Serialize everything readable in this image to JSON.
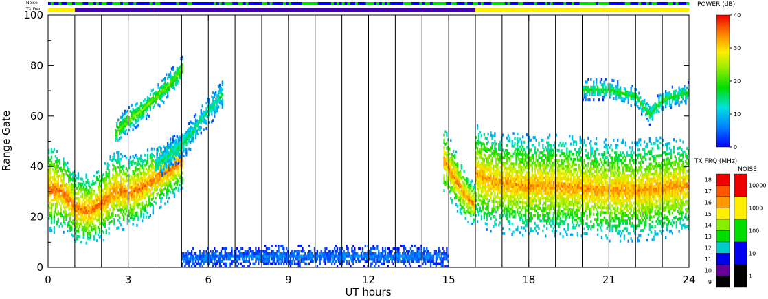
{
  "chart_data": {
    "type": "heatmap",
    "title": "",
    "xlabel": "UT hours",
    "ylabel": "Range Gate",
    "xlim": [
      0,
      24
    ],
    "ylim": [
      0,
      100
    ],
    "x_ticks": [
      "0",
      "3",
      "6",
      "9",
      "12",
      "15",
      "18",
      "21",
      "24"
    ],
    "x_tick_values": [
      0,
      3,
      6,
      9,
      12,
      15,
      18,
      21,
      24
    ],
    "y_ticks": [
      "0",
      "20",
      "40",
      "60",
      "80",
      "100"
    ],
    "y_tick_values": [
      0,
      20,
      40,
      60,
      80,
      100
    ],
    "scan_boundaries_ut": [
      1,
      2,
      3,
      4,
      5,
      6,
      7,
      8,
      9,
      10,
      11,
      12,
      13,
      14,
      15,
      16,
      17,
      18,
      19,
      20,
      21,
      22,
      23
    ],
    "grid": false,
    "echo_bands": [
      {
        "name": "Main echo band (early)",
        "ut": [
          0,
          0.5,
          1,
          1.5,
          2,
          2.5,
          3,
          3.5,
          4,
          4.5,
          5
        ],
        "center_gate": [
          31,
          30,
          23,
          22,
          25,
          30,
          29,
          31,
          35,
          38,
          42
        ],
        "thickness": [
          18,
          16,
          14,
          14,
          15,
          16,
          14,
          14,
          13,
          12,
          12
        ],
        "core_power_db": 35
      },
      {
        "name": "Main echo band (late)",
        "ut": [
          16,
          16.5,
          17,
          18,
          19,
          20,
          21,
          22,
          23,
          24
        ],
        "center_gate": [
          37,
          34,
          33,
          32,
          32,
          31,
          30,
          30,
          31,
          32
        ],
        "thickness": [
          20,
          20,
          20,
          20,
          20,
          20,
          20,
          20,
          20,
          18
        ],
        "core_power_db": 33
      },
      {
        "name": "Descending echo before 16 UT",
        "ut": [
          14.8,
          15.2,
          15.6,
          16
        ],
        "center_gate": [
          42,
          35,
          28,
          24
        ],
        "thickness": [
          14,
          12,
          10,
          8
        ],
        "core_power_db": 34
      },
      {
        "name": "Rising echo streak",
        "ut": [
          4,
          5,
          5.5,
          6,
          6.5
        ],
        "center_gate": [
          40,
          48,
          55,
          62,
          68
        ],
        "thickness": [
          6,
          6,
          6,
          6,
          6
        ],
        "core_power_db": 15
      },
      {
        "name": "Upper streak (3-5 UT)",
        "ut": [
          2.5,
          3,
          3.5,
          4,
          4.5,
          5
        ],
        "center_gate": [
          53,
          58,
          62,
          67,
          72,
          78
        ],
        "thickness": [
          5,
          5,
          5,
          5,
          5,
          5
        ],
        "core_power_db": 22
      },
      {
        "name": "Late upper echoes",
        "ut": [
          20,
          21,
          22,
          22.5,
          23,
          24
        ],
        "center_gate": [
          70,
          70,
          67,
          60,
          66,
          69
        ],
        "thickness": [
          4,
          4,
          4,
          4,
          4,
          4
        ],
        "core_power_db": 18
      },
      {
        "name": "Near-range ground scatter",
        "ut": [
          5,
          8,
          11,
          14,
          15
        ],
        "center_gate": [
          3,
          4,
          4,
          4,
          3
        ],
        "thickness": [
          4,
          4,
          4,
          4,
          4
        ],
        "core_power_db": 6
      }
    ],
    "colorbars": {
      "power": {
        "label": "POWER (dB)",
        "range": [
          0,
          40
        ],
        "ticks": [
          "0",
          "10",
          "20",
          "30",
          "40"
        ],
        "tick_values": [
          0,
          10,
          20,
          30,
          40
        ]
      },
      "tx_freq": {
        "label": "TX FRQ (MHz)",
        "bands": [
          {
            "label": "18",
            "color": "#ee0000"
          },
          {
            "label": "17",
            "color": "#ff5500"
          },
          {
            "label": "16",
            "color": "#ff9900"
          },
          {
            "label": "15",
            "color": "#ffee00"
          },
          {
            "label": "14",
            "color": "#88ee00"
          },
          {
            "label": "13",
            "color": "#00dd00"
          },
          {
            "label": "12",
            "color": "#00cccc"
          },
          {
            "label": "11",
            "color": "#0000ee"
          },
          {
            "label": "10",
            "color": "#660099"
          },
          {
            "label": "9",
            "color": "#000000"
          }
        ]
      },
      "noise": {
        "label": "NOISE",
        "bands": [
          {
            "label": "10000",
            "color": "#ee0000"
          },
          {
            "label": "1000",
            "color": "#ffee00"
          },
          {
            "label": "100",
            "color": "#00dd00"
          },
          {
            "label": "10",
            "color": "#0000ee"
          },
          {
            "label": "1",
            "color": "#000000"
          }
        ]
      }
    },
    "status_bars": {
      "noise_label": "Noise",
      "txfreq_label": "TX Freq",
      "txfreq_segments": [
        {
          "start": 0,
          "end": 1,
          "color": "#ffee00"
        },
        {
          "start": 1,
          "end": 16,
          "color": "#4400aa"
        },
        {
          "start": 16,
          "end": 24,
          "color": "#ffee00"
        }
      ],
      "noise_colors": [
        "#0000ee",
        "#00dd00"
      ]
    }
  }
}
